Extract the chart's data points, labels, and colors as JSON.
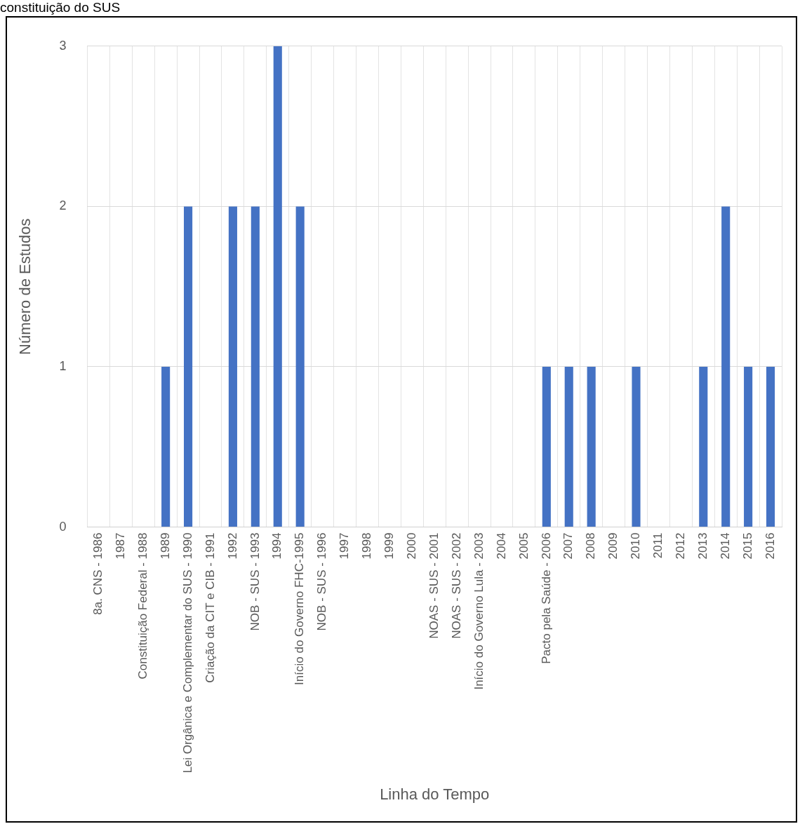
{
  "chart_data": {
    "type": "bar",
    "title": "constituição do SUS",
    "xlabel": "Linha do Tempo",
    "ylabel": "Número de Estudos",
    "categories": [
      "8a. CNS - 1986",
      "1987",
      "Constituição Federal - 1988",
      "1989",
      "Lei Orgânica e Complementar do SUS - 1990",
      "Criação da CIT e CIB - 1991",
      "1992",
      "NOB - SUS - 1993",
      "1994",
      "Início do Governo FHC-1995",
      "NOB - SUS - 1996",
      "1997",
      "1998",
      "1999",
      "2000",
      "NOAS - SUS - 2001",
      "NOAS - SUS - 2002",
      "Início do Governo Lula - 2003",
      "2004",
      "2005",
      "Pacto pela Saúde - 2006",
      "2007",
      "2008",
      "2009",
      "2010",
      "2011",
      "2012",
      "2013",
      "2014",
      "2015",
      "2016"
    ],
    "values": [
      0,
      0,
      0,
      1,
      2,
      0,
      2,
      2,
      3,
      2,
      0,
      0,
      0,
      0,
      0,
      0,
      0,
      0,
      0,
      0,
      1,
      1,
      1,
      0,
      1,
      0,
      0,
      1,
      2,
      1,
      1
    ],
    "color": "#4472c4",
    "ylim": [
      0,
      3
    ],
    "yticks": [
      0,
      1,
      2,
      3
    ],
    "grid": true
  }
}
